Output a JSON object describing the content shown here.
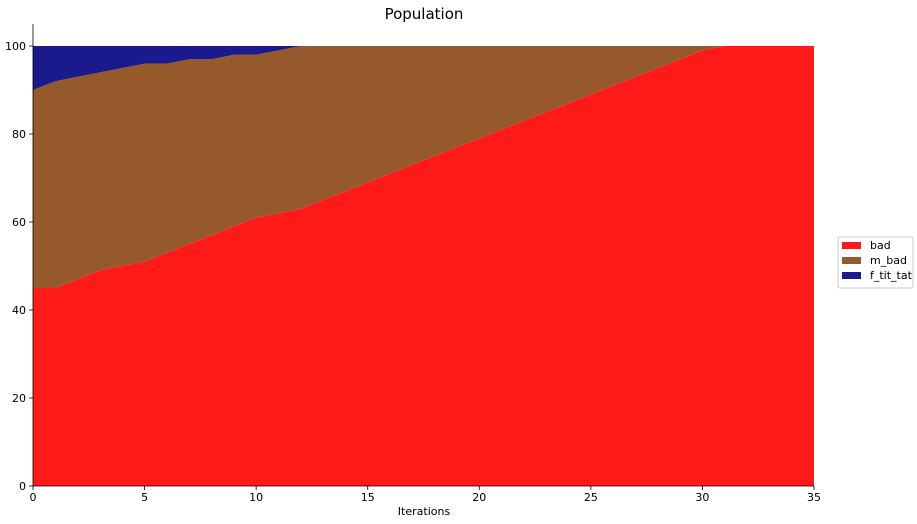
{
  "chart_data": {
    "type": "area",
    "stacked": true,
    "title": "Population",
    "xlabel": "Iterations",
    "ylabel": "",
    "xlim": [
      0,
      35
    ],
    "ylim": [
      0,
      105
    ],
    "xticks": [
      0,
      5,
      10,
      15,
      20,
      25,
      30,
      35
    ],
    "yticks": [
      0,
      20,
      40,
      60,
      80,
      100
    ],
    "grid": false,
    "legend_position": "right",
    "x": [
      0,
      1,
      2,
      3,
      4,
      5,
      6,
      7,
      8,
      9,
      10,
      11,
      12,
      13,
      14,
      15,
      16,
      17,
      18,
      19,
      20,
      21,
      22,
      23,
      24,
      25,
      26,
      27,
      28,
      29,
      30,
      31,
      32,
      33,
      34,
      35
    ],
    "series": [
      {
        "name": "bad",
        "color": "#ff1a1a",
        "values": [
          45,
          45,
          47,
          49,
          50,
          51,
          53,
          55,
          57,
          59,
          61,
          62,
          63,
          65,
          67,
          69,
          71,
          73,
          75,
          77,
          79,
          81,
          83,
          85,
          87,
          89,
          91,
          93,
          95,
          97,
          99,
          100,
          100,
          100,
          100,
          100
        ]
      },
      {
        "name": "m_bad",
        "color": "#96592b",
        "values": [
          45,
          47,
          46,
          45,
          45,
          45,
          43,
          42,
          40,
          39,
          37,
          37,
          37,
          35,
          33,
          31,
          29,
          27,
          25,
          23,
          21,
          19,
          17,
          15,
          13,
          11,
          9,
          7,
          5,
          3,
          1,
          0,
          0,
          0,
          0,
          0
        ]
      },
      {
        "name": "f_tit_tat",
        "color": "#1a1a8c",
        "values": [
          10,
          8,
          7,
          6,
          5,
          4,
          4,
          3,
          3,
          2,
          2,
          1,
          0,
          0,
          0,
          0,
          0,
          0,
          0,
          0,
          0,
          0,
          0,
          0,
          0,
          0,
          0,
          0,
          0,
          0,
          0,
          0,
          0,
          0,
          0,
          0
        ]
      }
    ]
  }
}
